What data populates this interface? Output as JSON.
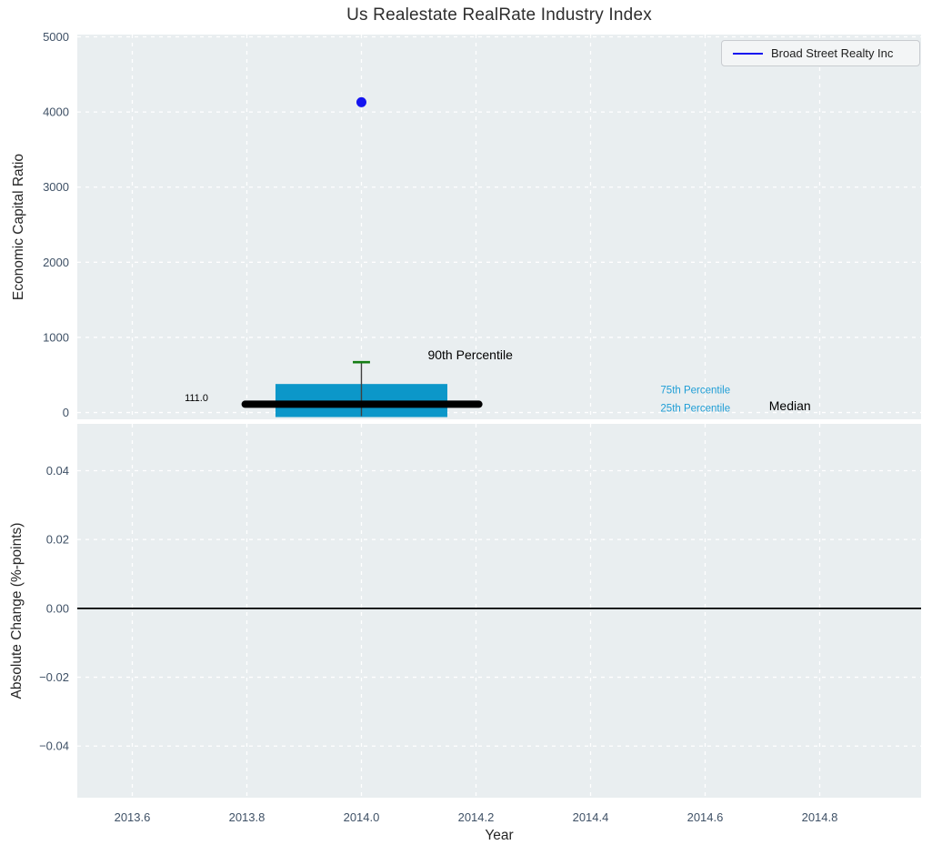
{
  "title": "Us Realestate RealRate Industry Index",
  "legend": {
    "label": "Broad Street Realty Inc",
    "line_color": "#1414f0"
  },
  "colors": {
    "figure_bg": "#ffffff",
    "plot_bg": "#e9eef0",
    "grid": "#ffffff",
    "tick_label": "#3f5166",
    "axis_label": "#262626",
    "box_fill": "#0c97c9",
    "percentile_text": "#1f9ed6",
    "median_line": "#000000",
    "whisker_line": "#3f3f3f",
    "cap_green": "#147d14",
    "point_blue": "#1414f0",
    "zero_line": "#000000"
  },
  "chart_data": [
    {
      "type": "scatter",
      "subtype": "scatter-with-percentile-box",
      "title": "Us Realestate RealRate Industry Index",
      "ylabel": "Economic Capital Ratio",
      "xlabel": "",
      "grid": true,
      "legend_position": "top-right",
      "xlim": [
        2013.504,
        2014.977
      ],
      "ylim": [
        -90,
        5030
      ],
      "xticks": [
        2013.6,
        2013.8,
        2014.0,
        2014.2,
        2014.4,
        2014.6,
        2014.8
      ],
      "yticks": [
        0,
        1000,
        2000,
        3000,
        4000,
        5000
      ],
      "ytick_labels": [
        "0",
        "1000",
        "2000",
        "3000",
        "4000",
        "5000"
      ],
      "series": [
        {
          "name": "Broad Street Realty Inc",
          "x": [
            2014.0
          ],
          "y": [
            4130
          ],
          "marker": "circle",
          "color": "#1414f0"
        }
      ],
      "box": {
        "x_center": 2014.0,
        "q1": -60,
        "median": 111.0,
        "q3": 380,
        "p90": 670,
        "box_width": 0.3,
        "median_left": 2013.797,
        "median_right": 2014.205,
        "cap_width": 0.03
      },
      "annotations": [
        {
          "id": "median-value",
          "text": "111.0",
          "x": 2013.712,
          "y": 200,
          "size": 11,
          "color": "#000000"
        },
        {
          "id": "90th-percentile",
          "text": "90th Percentile",
          "x": 2014.19,
          "y": 770,
          "size": 14,
          "color": "#000000"
        },
        {
          "id": "75th-percentile",
          "text": "75th Percentile",
          "x": 2014.583,
          "y": 303,
          "size": 11.5,
          "color": "#1f9ed6"
        },
        {
          "id": "25th-percentile",
          "text": "25th Percentile",
          "x": 2014.583,
          "y": 61,
          "size": 11.5,
          "color": "#1f9ed6"
        },
        {
          "id": "median-label",
          "text": "Median",
          "x": 2014.748,
          "y": 92,
          "size": 14,
          "color": "#000000"
        }
      ]
    },
    {
      "type": "line",
      "subtype": "zero-reference",
      "ylabel": "Absolute Change (%-points)",
      "xlabel": "Year",
      "grid": true,
      "xlim": [
        2013.504,
        2014.977
      ],
      "ylim": [
        -0.055,
        0.0536
      ],
      "xticks": [
        2013.6,
        2013.8,
        2014.0,
        2014.2,
        2014.4,
        2014.6,
        2014.8
      ],
      "xtick_labels": [
        "2013.6",
        "2013.8",
        "2014.0",
        "2014.2",
        "2014.4",
        "2014.6",
        "2014.8"
      ],
      "yticks": [
        -0.04,
        -0.02,
        0.0,
        0.02,
        0.04
      ],
      "ytick_labels": [
        "−0.04",
        "−0.02",
        "0.00",
        "0.02",
        "0.04"
      ],
      "zero_line": 0.0,
      "series": []
    }
  ]
}
